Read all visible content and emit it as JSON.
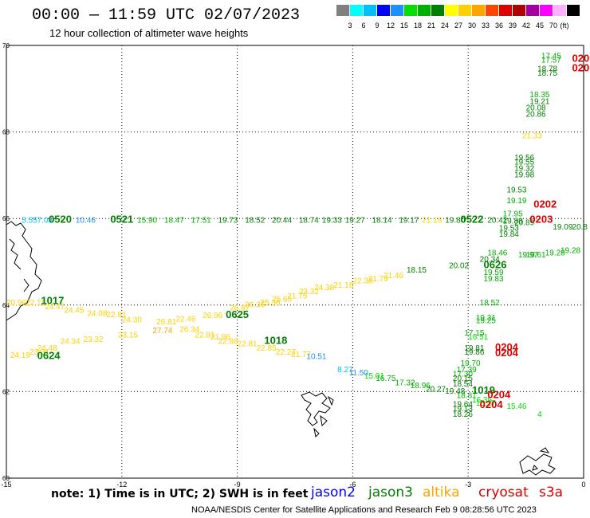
{
  "header": {
    "title": "00:00 — 11:59 UTC 02/07/2023",
    "subtitle": "12 hour collection of altimeter wave heights"
  },
  "legend": {
    "unit": "(ft)",
    "bins": [
      {
        "color": "#808080",
        "label": ""
      },
      {
        "color": "#00ffff",
        "label": "3"
      },
      {
        "color": "#00bfff",
        "label": "6"
      },
      {
        "color": "#0000ff",
        "label": "9"
      },
      {
        "color": "#1e90ff",
        "label": "12"
      },
      {
        "color": "#00e000",
        "label": "15"
      },
      {
        "color": "#00b000",
        "label": "18"
      },
      {
        "color": "#008000",
        "label": "21"
      },
      {
        "color": "#ffff00",
        "label": "24"
      },
      {
        "color": "#ffd000",
        "label": "27"
      },
      {
        "color": "#ffa500",
        "label": "30"
      },
      {
        "color": "#ff4500",
        "label": "33"
      },
      {
        "color": "#dd0000",
        "label": "36"
      },
      {
        "color": "#b00000",
        "label": "39"
      },
      {
        "color": "#a000a0",
        "label": "42"
      },
      {
        "color": "#ff00ff",
        "label": "45"
      },
      {
        "color": "#ffb0ff",
        "label": "70"
      },
      {
        "color": "#000000",
        "label": ""
      }
    ]
  },
  "axes": {
    "lon_ticks": [
      "-15",
      "-12",
      "-9",
      "-6",
      "-3",
      "0"
    ],
    "lat_ticks": [
      "70",
      "68",
      "66",
      "64",
      "62",
      "60"
    ]
  },
  "colors": {
    "jason2": "#0000ff",
    "jason3": "#008000",
    "altika": "#ffa500",
    "cryosat": "#dd0000",
    "s3a": "#dd0000",
    "light_green": "#00b000",
    "yellow": "#ffd000",
    "cyan": "#00bfff"
  },
  "observations": [
    {
      "id": "obs-0",
      "text": "5.55",
      "lon": -14.6,
      "lat": 65.9,
      "color": "#00bfff"
    },
    {
      "id": "obs-1",
      "text": "7.08",
      "lon": -14.2,
      "lat": 65.9,
      "color": "#00bfff"
    },
    {
      "id": "obs-2",
      "text": "0520",
      "lon": -13.9,
      "lat": 65.9,
      "color": "#008000"
    },
    {
      "id": "obs-3",
      "text": "10.46",
      "lon": -13.2,
      "lat": 65.9,
      "color": "#1e90ff"
    },
    {
      "id": "obs-4",
      "text": "0521",
      "lon": -12.3,
      "lat": 65.9,
      "color": "#008000"
    },
    {
      "id": "obs-5",
      "text": "15.90",
      "lon": -11.6,
      "lat": 65.9,
      "color": "#00b000"
    },
    {
      "id": "obs-6",
      "text": "18.47",
      "lon": -10.9,
      "lat": 65.9,
      "color": "#00b000"
    },
    {
      "id": "obs-7",
      "text": "17.51",
      "lon": -10.2,
      "lat": 65.9,
      "color": "#00b000"
    },
    {
      "id": "obs-8",
      "text": "19.73",
      "lon": -9.5,
      "lat": 65.9,
      "color": "#008000"
    },
    {
      "id": "obs-9",
      "text": "18.52",
      "lon": -8.8,
      "lat": 65.9,
      "color": "#008000"
    },
    {
      "id": "obs-10",
      "text": "20.44",
      "lon": -8.1,
      "lat": 65.9,
      "color": "#008000"
    },
    {
      "id": "obs-11",
      "text": "18.74",
      "lon": -7.4,
      "lat": 65.9,
      "color": "#008000"
    },
    {
      "id": "obs-12",
      "text": "19.33",
      "lon": -6.8,
      "lat": 65.9,
      "color": "#008000"
    },
    {
      "id": "obs-13",
      "text": "19.27",
      "lon": -6.2,
      "lat": 65.9,
      "color": "#008000"
    },
    {
      "id": "obs-14",
      "text": "18.14",
      "lon": -5.5,
      "lat": 65.9,
      "color": "#008000"
    },
    {
      "id": "obs-15",
      "text": "19.17",
      "lon": -4.8,
      "lat": 65.9,
      "color": "#008000"
    },
    {
      "id": "obs-16",
      "text": "21.18",
      "lon": -4.2,
      "lat": 65.9,
      "color": "#ffd000"
    },
    {
      "id": "obs-17",
      "text": "19.80",
      "lon": -3.6,
      "lat": 65.9,
      "color": "#008000"
    },
    {
      "id": "obs-18",
      "text": "0522",
      "lon": -3.2,
      "lat": 65.9,
      "color": "#008000"
    },
    {
      "id": "obs-19",
      "text": "20.42",
      "lon": -2.5,
      "lat": 65.9,
      "color": "#008000"
    },
    {
      "id": "obs-20",
      "text": "20.89",
      "lon": -1.8,
      "lat": 65.85,
      "color": "#008000"
    },
    {
      "id": "obs-21",
      "text": "0202",
      "lon": -1.3,
      "lat": 66.25,
      "color": "#dd0000"
    },
    {
      "id": "obs-22",
      "text": "0203",
      "lon": -1.4,
      "lat": 65.9,
      "color": "#dd0000"
    },
    {
      "id": "obs-23",
      "text": "19.53",
      "lon": -2.0,
      "lat": 66.6,
      "color": "#008000"
    },
    {
      "id": "obs-24",
      "text": "19.19",
      "lon": -2.0,
      "lat": 66.35,
      "color": "#00b000"
    },
    {
      "id": "obs-25",
      "text": "17.95",
      "lon": -2.1,
      "lat": 66.05,
      "color": "#00b000"
    },
    {
      "id": "obs-26",
      "text": "19.88",
      "lon": -2.1,
      "lat": 65.88,
      "color": "#008000"
    },
    {
      "id": "obs-27",
      "text": "19.53",
      "lon": -2.2,
      "lat": 65.72,
      "color": "#008000"
    },
    {
      "id": "obs-28",
      "text": "19.84",
      "lon": -2.2,
      "lat": 65.58,
      "color": "#008000"
    },
    {
      "id": "obs-29",
      "text": "19.09",
      "lon": -0.8,
      "lat": 65.75,
      "color": "#008000"
    },
    {
      "id": "obs-30",
      "text": "20.8",
      "lon": -0.3,
      "lat": 65.75,
      "color": "#008000"
    },
    {
      "id": "obs-31",
      "text": "17.45",
      "lon": -1.1,
      "lat": 69.7,
      "color": "#00b000"
    },
    {
      "id": "obs-32",
      "text": "17.57",
      "lon": -1.1,
      "lat": 69.6,
      "color": "#00b000"
    },
    {
      "id": "obs-33",
      "text": "18.78",
      "lon": -1.2,
      "lat": 69.4,
      "color": "#008000"
    },
    {
      "id": "obs-34",
      "text": "18.75",
      "lon": -1.2,
      "lat": 69.3,
      "color": "#008000"
    },
    {
      "id": "obs-35",
      "text": "020",
      "lon": -0.3,
      "lat": 69.62,
      "color": "#dd0000"
    },
    {
      "id": "obs-36",
      "text": "020",
      "lon": -0.3,
      "lat": 69.4,
      "color": "#dd0000"
    },
    {
      "id": "obs-37",
      "text": "18.35",
      "lon": -1.4,
      "lat": 68.8,
      "color": "#00b000"
    },
    {
      "id": "obs-38",
      "text": "19.21",
      "lon": -1.4,
      "lat": 68.65,
      "color": "#008000"
    },
    {
      "id": "obs-39",
      "text": "20.08",
      "lon": -1.5,
      "lat": 68.5,
      "color": "#008000"
    },
    {
      "id": "obs-40",
      "text": "20.86",
      "lon": -1.5,
      "lat": 68.35,
      "color": "#008000"
    },
    {
      "id": "obs-41",
      "text": "21.33",
      "lon": -1.6,
      "lat": 67.85,
      "color": "#ffd000"
    },
    {
      "id": "obs-42",
      "text": "19.56",
      "lon": -1.8,
      "lat": 67.35,
      "color": "#008000"
    },
    {
      "id": "obs-43",
      "text": "19.55",
      "lon": -1.8,
      "lat": 67.25,
      "color": "#008000"
    },
    {
      "id": "obs-44",
      "text": "19.32",
      "lon": -1.8,
      "lat": 67.1,
      "color": "#008000"
    },
    {
      "id": "obs-45",
      "text": "19.98",
      "lon": -1.8,
      "lat": 66.95,
      "color": "#008000"
    },
    {
      "id": "obs-46",
      "text": "18.46",
      "lon": -2.5,
      "lat": 65.15,
      "color": "#00b000"
    },
    {
      "id": "obs-47",
      "text": "20.34",
      "lon": -2.7,
      "lat": 65.0,
      "color": "#008000"
    },
    {
      "id": "obs-48",
      "text": "0626",
      "lon": -2.6,
      "lat": 64.85,
      "color": "#008000"
    },
    {
      "id": "obs-49",
      "text": "19.59",
      "lon": -2.6,
      "lat": 64.7,
      "color": "#00b000"
    },
    {
      "id": "obs-50",
      "text": "19.83",
      "lon": -2.6,
      "lat": 64.55,
      "color": "#00b000"
    },
    {
      "id": "obs-51",
      "text": "19.97",
      "lon": -1.7,
      "lat": 65.1,
      "color": "#00b000"
    },
    {
      "id": "obs-52",
      "text": "19.28",
      "lon": -1.0,
      "lat": 65.15,
      "color": "#00b000"
    },
    {
      "id": "obs-53",
      "text": "19.61",
      "lon": -1.5,
      "lat": 65.1,
      "color": "#00b000"
    },
    {
      "id": "obs-54",
      "text": "19.28",
      "lon": -0.6,
      "lat": 65.2,
      "color": "#00b000"
    },
    {
      "id": "obs-55",
      "text": "20.02",
      "lon": -3.5,
      "lat": 64.85,
      "color": "#008000"
    },
    {
      "id": "obs-56",
      "text": "18.15",
      "lon": -4.6,
      "lat": 64.75,
      "color": "#008000"
    },
    {
      "id": "obs-57",
      "text": "21.46",
      "lon": -5.2,
      "lat": 64.62,
      "color": "#ffd000"
    },
    {
      "id": "obs-58",
      "text": "21.79",
      "lon": -5.6,
      "lat": 64.55,
      "color": "#ffd000"
    },
    {
      "id": "obs-59",
      "text": "22.38",
      "lon": -6.0,
      "lat": 64.5,
      "color": "#ffd000"
    },
    {
      "id": "obs-60",
      "text": "21.18",
      "lon": -6.5,
      "lat": 64.4,
      "color": "#ffd000"
    },
    {
      "id": "obs-61",
      "text": "24.38",
      "lon": -7.0,
      "lat": 64.35,
      "color": "#ffd000"
    },
    {
      "id": "obs-62",
      "text": "23.32",
      "lon": -7.4,
      "lat": 64.25,
      "color": "#ffd000"
    },
    {
      "id": "obs-63",
      "text": "21.75",
      "lon": -7.7,
      "lat": 64.15,
      "color": "#ffd000"
    },
    {
      "id": "obs-64",
      "text": "25.65",
      "lon": -8.1,
      "lat": 64.08,
      "color": "#ffd000"
    },
    {
      "id": "obs-65",
      "text": "25.36",
      "lon": -8.4,
      "lat": 64.0,
      "color": "#ffd000"
    },
    {
      "id": "obs-66",
      "text": "26.36",
      "lon": -8.8,
      "lat": 63.95,
      "color": "#ffd000"
    },
    {
      "id": "obs-67",
      "text": "26.87",
      "lon": -9.2,
      "lat": 63.88,
      "color": "#ffd000"
    },
    {
      "id": "obs-68",
      "text": "0625",
      "lon": -9.3,
      "lat": 63.7,
      "color": "#008000"
    },
    {
      "id": "obs-69",
      "text": "26.96",
      "lon": -9.9,
      "lat": 63.7,
      "color": "#ffd000"
    },
    {
      "id": "obs-70",
      "text": "22.46",
      "lon": -10.6,
      "lat": 63.62,
      "color": "#ffd000"
    },
    {
      "id": "obs-71",
      "text": "26.81",
      "lon": -11.1,
      "lat": 63.55,
      "color": "#ffd000"
    },
    {
      "id": "obs-72",
      "text": "24.30",
      "lon": -12.0,
      "lat": 63.6,
      "color": "#ffd000"
    },
    {
      "id": "obs-73",
      "text": "22.81",
      "lon": -12.4,
      "lat": 63.72,
      "color": "#ffd000"
    },
    {
      "id": "obs-74",
      "text": "24.08",
      "lon": -12.9,
      "lat": 63.75,
      "color": "#ffd000"
    },
    {
      "id": "obs-75",
      "text": "24.45",
      "lon": -13.5,
      "lat": 63.82,
      "color": "#ffd000"
    },
    {
      "id": "obs-76",
      "text": "24.47",
      "lon": -14.0,
      "lat": 63.9,
      "color": "#ffd000"
    },
    {
      "id": "obs-77",
      "text": "22.18",
      "lon": -14.5,
      "lat": 64.0,
      "color": "#ffd000"
    },
    {
      "id": "obs-78",
      "text": "20.96",
      "lon": -15.0,
      "lat": 64.0,
      "color": "#ffd000"
    },
    {
      "id": "obs-79",
      "text": "1017",
      "lon": -14.1,
      "lat": 64.02,
      "color": "#008000"
    },
    {
      "id": "obs-80",
      "text": "27.74",
      "lon": -11.2,
      "lat": 63.35,
      "color": "#ffa500"
    },
    {
      "id": "obs-81",
      "text": "26.34",
      "lon": -10.5,
      "lat": 63.38,
      "color": "#ffd000"
    },
    {
      "id": "obs-82",
      "text": "23.15",
      "lon": -12.1,
      "lat": 63.25,
      "color": "#ffd000"
    },
    {
      "id": "obs-83",
      "text": "22.81",
      "lon": -10.1,
      "lat": 63.25,
      "color": "#ffd000"
    },
    {
      "id": "obs-84",
      "text": "21.96",
      "lon": -9.7,
      "lat": 63.2,
      "color": "#ffd000"
    },
    {
      "id": "obs-85",
      "text": "22.88",
      "lon": -9.5,
      "lat": 63.1,
      "color": "#ffd000"
    },
    {
      "id": "obs-86",
      "text": "22.81",
      "lon": -9.0,
      "lat": 63.05,
      "color": "#ffd000"
    },
    {
      "id": "obs-87",
      "text": "23.32",
      "lon": -13.0,
      "lat": 63.15,
      "color": "#ffd000"
    },
    {
      "id": "obs-88",
      "text": "24.34",
      "lon": -13.6,
      "lat": 63.1,
      "color": "#ffd000"
    },
    {
      "id": "obs-89",
      "text": "24.48",
      "lon": -14.2,
      "lat": 62.95,
      "color": "#ffd000"
    },
    {
      "id": "obs-90",
      "text": "23.31",
      "lon": -14.4,
      "lat": 62.85,
      "color": "#ffd000"
    },
    {
      "id": "obs-91",
      "text": "24.19",
      "lon": -14.9,
      "lat": 62.78,
      "color": "#ffd000"
    },
    {
      "id": "obs-92",
      "text": "0624",
      "lon": -14.2,
      "lat": 62.75,
      "color": "#008000"
    },
    {
      "id": "obs-93",
      "text": "1018",
      "lon": -8.3,
      "lat": 63.1,
      "color": "#008000"
    },
    {
      "id": "obs-94",
      "text": "22.85",
      "lon": -8.5,
      "lat": 62.95,
      "color": "#ffd000"
    },
    {
      "id": "obs-95",
      "text": "22.27",
      "lon": -8.0,
      "lat": 62.85,
      "color": "#ffd000"
    },
    {
      "id": "obs-96",
      "text": "21.77",
      "lon": -7.6,
      "lat": 62.8,
      "color": "#ffd000"
    },
    {
      "id": "obs-97",
      "text": "10.51",
      "lon": -7.2,
      "lat": 62.75,
      "color": "#1e90ff"
    },
    {
      "id": "obs-98",
      "text": "8.27",
      "lon": -6.4,
      "lat": 62.45,
      "color": "#00bfff"
    },
    {
      "id": "obs-99",
      "text": "11.50",
      "lon": -6.1,
      "lat": 62.38,
      "color": "#1e90ff"
    },
    {
      "id": "obs-100",
      "text": "15.01",
      "lon": -5.7,
      "lat": 62.3,
      "color": "#00e000"
    },
    {
      "id": "obs-101",
      "text": "16.75",
      "lon": -5.4,
      "lat": 62.25,
      "color": "#00b000"
    },
    {
      "id": "obs-102",
      "text": "17.32",
      "lon": -4.9,
      "lat": 62.15,
      "color": "#00b000"
    },
    {
      "id": "obs-103",
      "text": "18.96",
      "lon": -4.5,
      "lat": 62.08,
      "color": "#00b000"
    },
    {
      "id": "obs-104",
      "text": "20.27",
      "lon": -4.1,
      "lat": 62.0,
      "color": "#008000"
    },
    {
      "id": "obs-105",
      "text": "19.48",
      "lon": -3.6,
      "lat": 61.95,
      "color": "#008000"
    },
    {
      "id": "obs-106",
      "text": "1019",
      "lon": -2.9,
      "lat": 61.95,
      "color": "#008000"
    },
    {
      "id": "obs-107",
      "text": "18.81",
      "lon": -3.3,
      "lat": 61.85,
      "color": "#00b000"
    },
    {
      "id": "obs-108",
      "text": "16.35",
      "lon": -2.9,
      "lat": 61.75,
      "color": "#00e000"
    },
    {
      "id": "obs-109",
      "text": "15.27",
      "lon": -2.8,
      "lat": 61.68,
      "color": "#00e000"
    },
    {
      "id": "obs-110",
      "text": "0204",
      "lon": -2.5,
      "lat": 61.85,
      "color": "#dd0000"
    },
    {
      "id": "obs-111",
      "text": "0204",
      "lon": -2.7,
      "lat": 61.62,
      "color": "#dd0000"
    },
    {
      "id": "obs-112",
      "text": "15.46",
      "lon": -2.0,
      "lat": 61.6,
      "color": "#00e000"
    },
    {
      "id": "obs-113",
      "text": "19.64",
      "lon": -3.4,
      "lat": 61.65,
      "color": "#008000"
    },
    {
      "id": "obs-114",
      "text": "19.13",
      "lon": -3.4,
      "lat": 61.55,
      "color": "#008000"
    },
    {
      "id": "obs-115",
      "text": "18.26",
      "lon": -3.4,
      "lat": 61.42,
      "color": "#008000"
    },
    {
      "id": "obs-116",
      "text": "4",
      "lon": -1.2,
      "lat": 61.42,
      "color": "#00e000"
    },
    {
      "id": "obs-117",
      "text": "18.52",
      "lon": -2.7,
      "lat": 64.0,
      "color": "#00b000"
    },
    {
      "id": "obs-118",
      "text": "19.31",
      "lon": -2.8,
      "lat": 63.65,
      "color": "#00b000"
    },
    {
      "id": "obs-119",
      "text": "19.25",
      "lon": -2.8,
      "lat": 63.58,
      "color": "#00b000"
    },
    {
      "id": "obs-120",
      "text": "17.15",
      "lon": -3.1,
      "lat": 63.3,
      "color": "#00b000"
    },
    {
      "id": "obs-121",
      "text": "16.51",
      "lon": -3.0,
      "lat": 63.2,
      "color": "#00e000"
    },
    {
      "id": "obs-122",
      "text": "19.81",
      "lon": -3.1,
      "lat": 62.95,
      "color": "#008000"
    },
    {
      "id": "obs-123",
      "text": "19.86",
      "lon": -3.1,
      "lat": 62.85,
      "color": "#008000"
    },
    {
      "id": "obs-124",
      "text": "0204",
      "lon": -2.3,
      "lat": 62.95,
      "color": "#dd0000"
    },
    {
      "id": "obs-125",
      "text": "0204",
      "lon": -2.3,
      "lat": 62.82,
      "color": "#dd0000"
    },
    {
      "id": "obs-126",
      "text": "19.70",
      "lon": -3.2,
      "lat": 62.6,
      "color": "#00b000"
    },
    {
      "id": "obs-127",
      "text": "17.39",
      "lon": -3.3,
      "lat": 62.45,
      "color": "#00b000"
    },
    {
      "id": "obs-128",
      "text": "17.30",
      "lon": -3.4,
      "lat": 62.35,
      "color": "#00b000"
    },
    {
      "id": "obs-129",
      "text": "20.15",
      "lon": -3.4,
      "lat": 62.25,
      "color": "#008000"
    },
    {
      "id": "obs-130",
      "text": "18.54",
      "lon": -3.4,
      "lat": 62.12,
      "color": "#008000"
    }
  ],
  "footer": {
    "note": "note: 1) Time is in UTC; 2) SWH is in feet",
    "satellites": [
      {
        "name": "jason2",
        "color": "#0000ff"
      },
      {
        "name": "jason3",
        "color": "#008000"
      },
      {
        "name": "altika",
        "color": "#ffa500"
      },
      {
        "name": "cryosat",
        "color": "#dd0000"
      },
      {
        "name": "s3a",
        "color": "#dd0000"
      }
    ],
    "credit": "NOAA/NESDIS Center for Satellite Applications and Research    Feb  9 08:28:56 UTC 2023"
  }
}
